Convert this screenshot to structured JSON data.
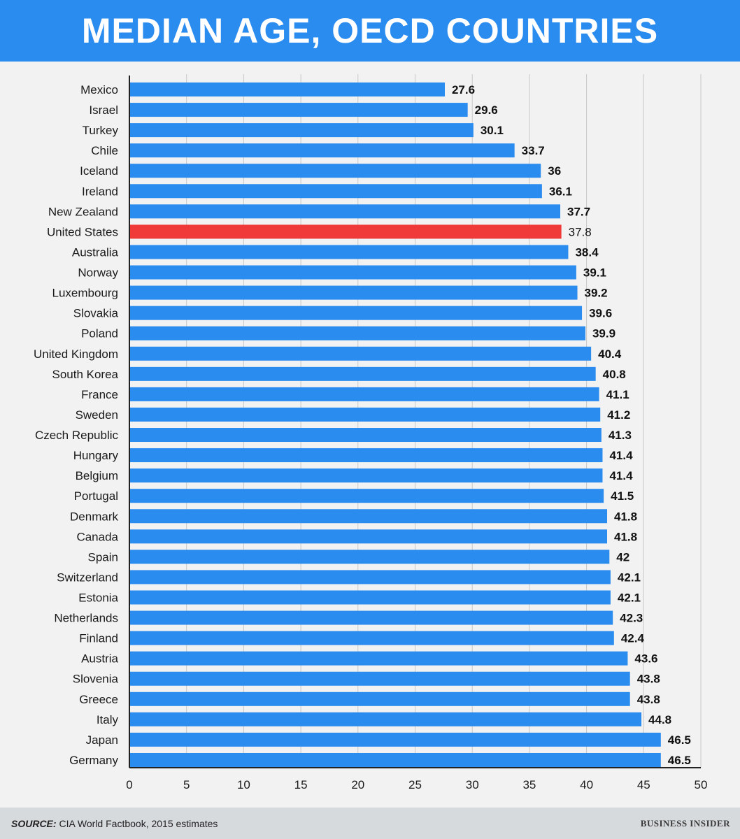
{
  "chart_data": {
    "type": "bar",
    "orientation": "horizontal",
    "title": "MEDIAN AGE, OECD COUNTRIES",
    "categories": [
      "Mexico",
      "Israel",
      "Turkey",
      "Chile",
      "Iceland",
      "Ireland",
      "New Zealand",
      "United States",
      "Australia",
      "Norway",
      "Luxembourg",
      "Slovakia",
      "Poland",
      "United Kingdom",
      "South Korea",
      "France",
      "Sweden",
      "Czech Republic",
      "Hungary",
      "Belgium",
      "Portugal",
      "Denmark",
      "Canada",
      "Spain",
      "Switzerland",
      "Estonia",
      "Netherlands",
      "Finland",
      "Austria",
      "Slovenia",
      "Greece",
      "Italy",
      "Japan",
      "Germany"
    ],
    "values": [
      27.6,
      29.6,
      30.1,
      33.7,
      36,
      36.1,
      37.7,
      37.8,
      38.4,
      39.1,
      39.2,
      39.6,
      39.9,
      40.4,
      40.8,
      41.1,
      41.2,
      41.3,
      41.4,
      41.4,
      41.5,
      41.8,
      41.8,
      42,
      42.1,
      42.1,
      42.3,
      42.4,
      43.6,
      43.8,
      43.8,
      44.8,
      46.5,
      46.5
    ],
    "value_labels": [
      "27.6",
      "29.6",
      "30.1",
      "33.7",
      "36",
      "36.1",
      "37.7",
      "37.8",
      "38.4",
      "39.1",
      "39.2",
      "39.6",
      "39.9",
      "40.4",
      "40.8",
      "41.1",
      "41.2",
      "41.3",
      "41.4",
      "41.4",
      "41.5",
      "41.8",
      "41.8",
      "42",
      "42.1",
      "42.1",
      "42.3",
      "42.4",
      "43.6",
      "43.8",
      "43.8",
      "44.8",
      "46.5",
      "46.5"
    ],
    "highlight": "United States",
    "xlim": [
      0,
      50
    ],
    "xticks": [
      0,
      5,
      10,
      15,
      20,
      25,
      30,
      35,
      40,
      45,
      50
    ],
    "xlabel": "",
    "ylabel": "",
    "grid": true,
    "colors": {
      "bar": "#2b8cf0",
      "highlight": "#f03a3a",
      "grid": "#c8c8c8",
      "axis": "#222222"
    }
  },
  "footer": {
    "source_label": "SOURCE:",
    "source_text": "CIA World Factbook, 2015 estimates",
    "brand": "BUSINESS INSIDER"
  }
}
